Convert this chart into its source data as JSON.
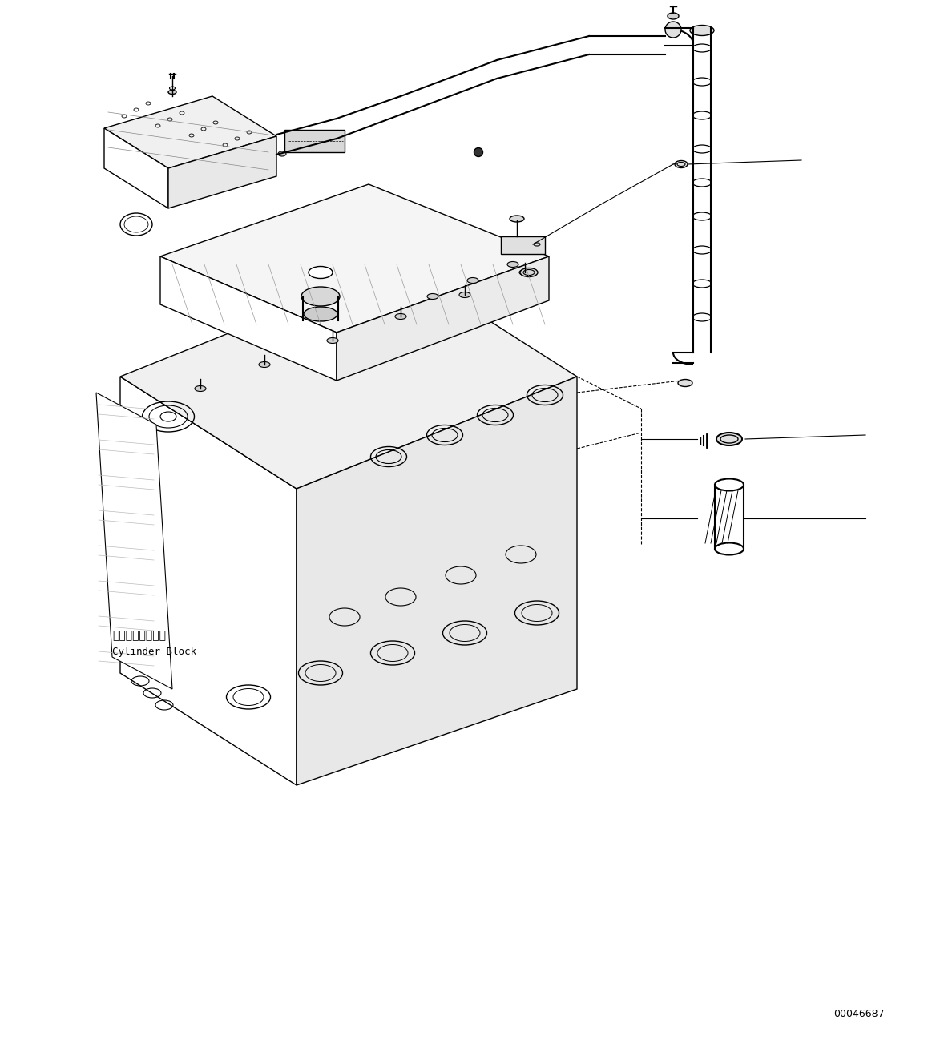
{
  "title": "",
  "bg_color": "#ffffff",
  "line_color": "#000000",
  "figure_width": 11.63,
  "figure_height": 13.03,
  "dpi": 100,
  "text_cylinder_block_jp": "シリンダブロック",
  "text_cylinder_block_en": "Cylinder Block",
  "text_part_number": "00046687"
}
